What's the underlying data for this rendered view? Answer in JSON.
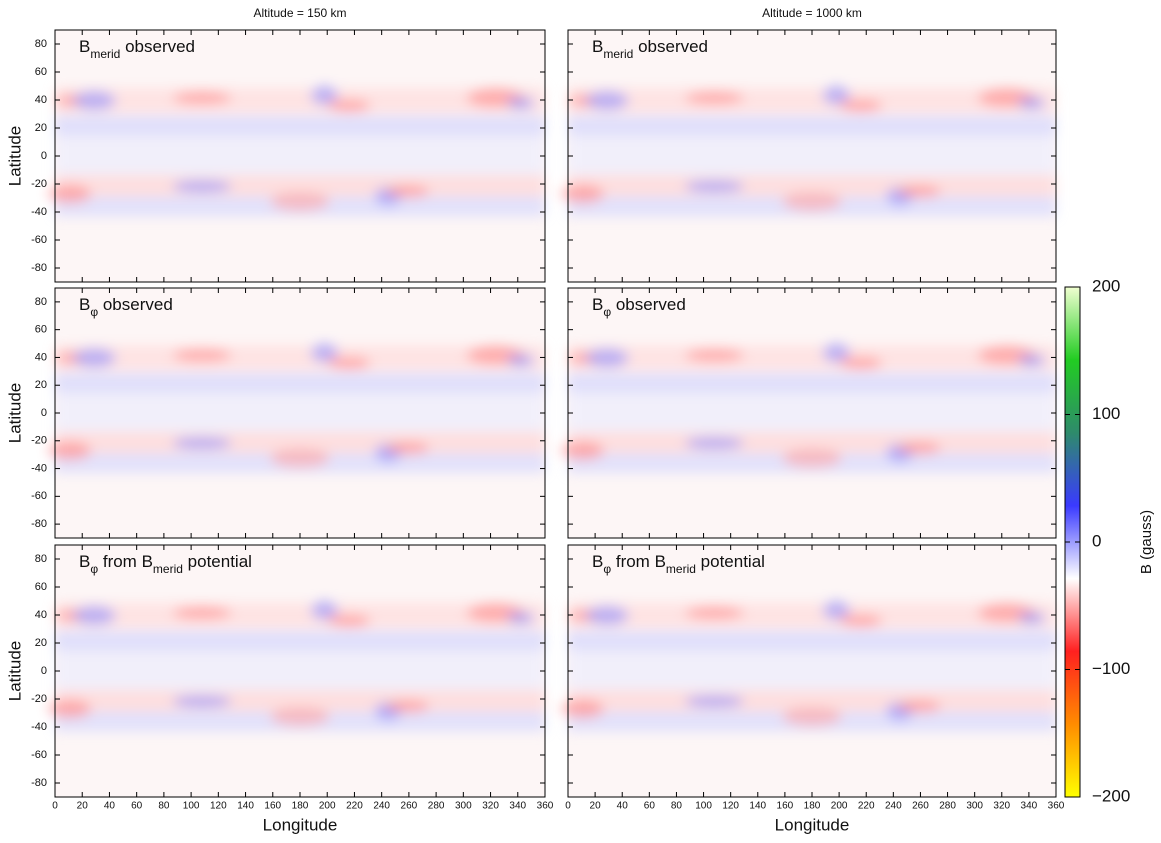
{
  "column_titles": [
    "Altitude = 150 km",
    "Altitude = 1000 km"
  ],
  "chart_data": [
    {
      "type": "heatmap",
      "title": [
        {
          "text": "B"
        },
        {
          "text": "merid",
          "subscript": true
        },
        {
          "text": " observed"
        }
      ],
      "ylabel": "Latitude",
      "xlim": [
        0,
        360
      ],
      "ylim": [
        -90,
        90
      ],
      "xticks": [
        0,
        20,
        40,
        60,
        80,
        100,
        120,
        140,
        160,
        180,
        200,
        220,
        240,
        260,
        280,
        300,
        320,
        340,
        360
      ],
      "yticks": [
        -80,
        -60,
        -40,
        -20,
        0,
        20,
        40,
        60,
        80
      ]
    },
    {
      "type": "heatmap",
      "title": [
        {
          "text": "B"
        },
        {
          "text": "merid",
          "subscript": true
        },
        {
          "text": " observed"
        }
      ],
      "xlim": [
        0,
        360
      ],
      "ylim": [
        -90,
        90
      ],
      "xticks": [
        0,
        20,
        40,
        60,
        80,
        100,
        120,
        140,
        160,
        180,
        200,
        220,
        240,
        260,
        280,
        300,
        320,
        340,
        360
      ],
      "yticks": [
        -80,
        -60,
        -40,
        -20,
        0,
        20,
        40,
        60,
        80
      ]
    },
    {
      "type": "heatmap",
      "title": [
        {
          "text": "B"
        },
        {
          "text": "φ",
          "subscript": true
        },
        {
          "text": " observed"
        }
      ],
      "ylabel": "Latitude",
      "xlim": [
        0,
        360
      ],
      "ylim": [
        -90,
        90
      ],
      "xticks": [
        0,
        20,
        40,
        60,
        80,
        100,
        120,
        140,
        160,
        180,
        200,
        220,
        240,
        260,
        280,
        300,
        320,
        340,
        360
      ],
      "yticks": [
        -80,
        -60,
        -40,
        -20,
        0,
        20,
        40,
        60,
        80
      ]
    },
    {
      "type": "heatmap",
      "title": [
        {
          "text": "B"
        },
        {
          "text": "φ",
          "subscript": true
        },
        {
          "text": " observed"
        }
      ],
      "xlim": [
        0,
        360
      ],
      "ylim": [
        -90,
        90
      ],
      "xticks": [
        0,
        20,
        40,
        60,
        80,
        100,
        120,
        140,
        160,
        180,
        200,
        220,
        240,
        260,
        280,
        300,
        320,
        340,
        360
      ],
      "yticks": [
        -80,
        -60,
        -40,
        -20,
        0,
        20,
        40,
        60,
        80
      ]
    },
    {
      "type": "heatmap",
      "title": [
        {
          "text": "B"
        },
        {
          "text": "φ",
          "subscript": true
        },
        {
          "text": " from "
        },
        {
          "text": "B"
        },
        {
          "text": "merid",
          "subscript": true
        },
        {
          "text": " potential"
        }
      ],
      "ylabel": "Latitude",
      "xlabel": "Longitude",
      "xlim": [
        0,
        360
      ],
      "ylim": [
        -90,
        90
      ],
      "xticks": [
        0,
        20,
        40,
        60,
        80,
        100,
        120,
        140,
        160,
        180,
        200,
        220,
        240,
        260,
        280,
        300,
        320,
        340,
        360
      ],
      "yticks": [
        -80,
        -60,
        -40,
        -20,
        0,
        20,
        40,
        60,
        80
      ]
    },
    {
      "type": "heatmap",
      "title": [
        {
          "text": "B"
        },
        {
          "text": "φ",
          "subscript": true
        },
        {
          "text": " from "
        },
        {
          "text": "B"
        },
        {
          "text": "merid",
          "subscript": true
        },
        {
          "text": " potential"
        }
      ],
      "xlabel": "Longitude",
      "xlim": [
        0,
        360
      ],
      "ylim": [
        -90,
        90
      ],
      "xticks": [
        0,
        20,
        40,
        60,
        80,
        100,
        120,
        140,
        160,
        180,
        200,
        220,
        240,
        260,
        280,
        300,
        320,
        340,
        360
      ],
      "yticks": [
        -80,
        -60,
        -40,
        -20,
        0,
        20,
        40,
        60,
        80
      ]
    }
  ],
  "colorbar": {
    "label": "B (gauss)",
    "lim": [
      -200,
      200
    ],
    "ticks": [
      {
        "value": -200,
        "label": "−200"
      },
      {
        "value": -100,
        "label": "−100"
      },
      0,
      100,
      200
    ],
    "colors": [
      "#ffff00",
      "#ff8c00",
      "#ff2020",
      "#ffffff",
      "#3a3aff",
      "#2e8b6b",
      "#22cc22",
      "#f0ffd0"
    ]
  }
}
